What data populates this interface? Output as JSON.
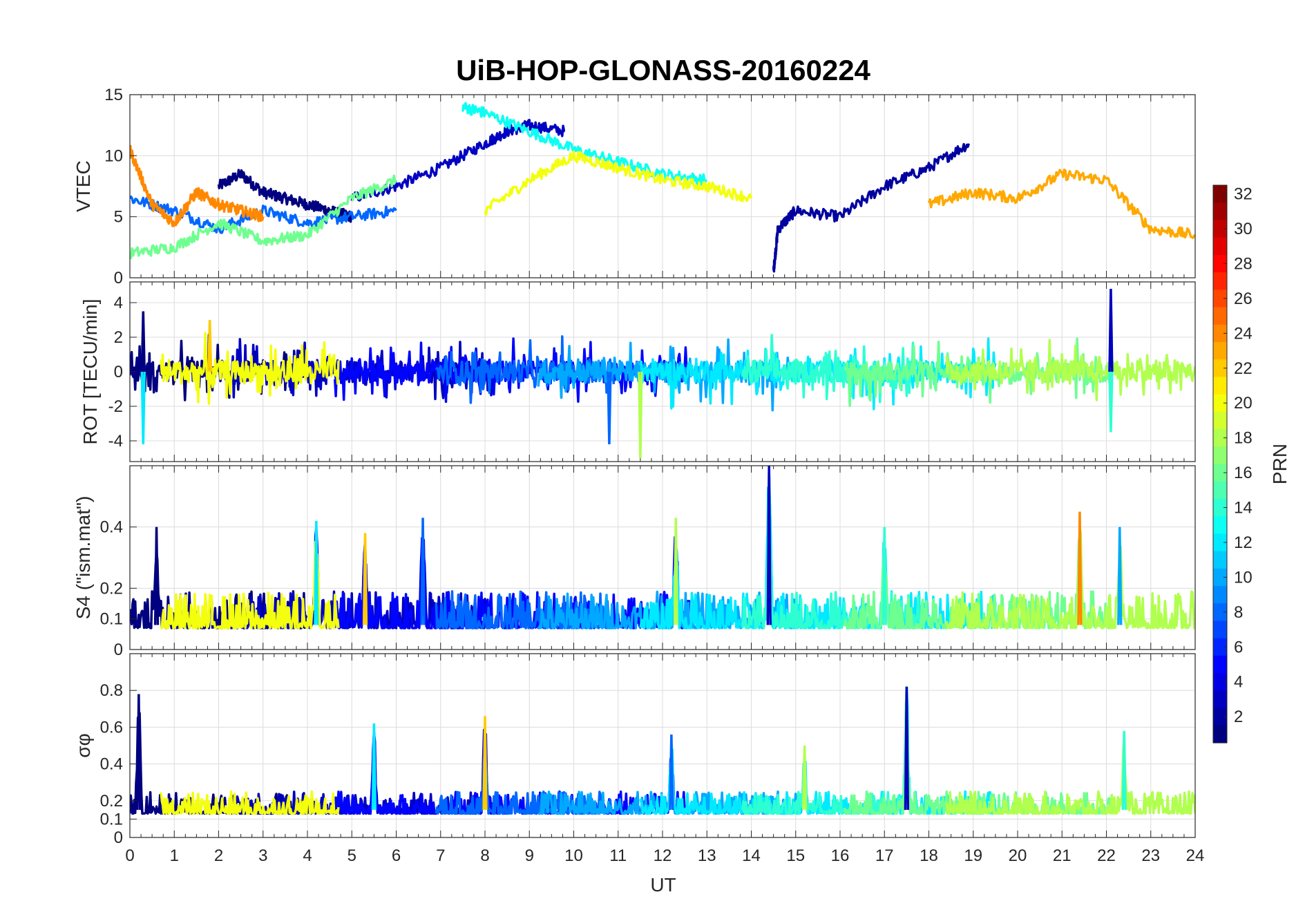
{
  "title": "UiB-HOP-GLONASS-20160224",
  "colorbar": {
    "label": "PRN",
    "ticks": [
      2,
      4,
      6,
      8,
      10,
      12,
      14,
      16,
      18,
      20,
      22,
      24,
      26,
      28,
      30,
      32
    ],
    "range": [
      1,
      32
    ],
    "colormap": "jet"
  },
  "chart_data": [
    {
      "type": "line",
      "ylabel": "VTEC",
      "ylim": [
        0,
        15
      ],
      "yticks": [
        0,
        5,
        10,
        15
      ],
      "xlim": [
        0,
        24
      ],
      "grid": true,
      "series_note": "Multiple PRN traces colored by PRN (jet colormap)",
      "series": [
        {
          "prn": 1,
          "x": [
            2.0,
            2.5,
            3.0,
            3.5,
            4.0,
            4.5,
            5.0
          ],
          "values": [
            7.5,
            8.5,
            7.0,
            6.5,
            6.0,
            5.5,
            5.0
          ]
        },
        {
          "prn": 3,
          "x": [
            5.0,
            6.0,
            7.0,
            8.0,
            8.5,
            9.0,
            9.8
          ],
          "values": [
            6.5,
            7.5,
            9.0,
            11.0,
            12.0,
            12.5,
            12.0
          ]
        },
        {
          "prn": 2,
          "x": [
            14.5,
            14.6,
            15.0,
            16.0,
            17.0,
            18.0,
            18.9
          ],
          "values": [
            0.5,
            4.0,
            5.5,
            5.0,
            7.5,
            9.0,
            11.0
          ]
        },
        {
          "prn": 8,
          "x": [
            0.0,
            1.0,
            2.0,
            3.0,
            4.0,
            5.0,
            6.0
          ],
          "values": [
            6.5,
            5.5,
            4.0,
            5.5,
            4.5,
            5.0,
            5.5
          ]
        },
        {
          "prn": 13,
          "x": [
            7.5,
            8.0,
            9.0,
            10.0,
            11.0,
            12.0,
            13.0
          ],
          "values": [
            14.0,
            13.5,
            12.0,
            10.5,
            9.5,
            8.5,
            8.0
          ]
        },
        {
          "prn": 16,
          "x": [
            0.0,
            1.0,
            2.0,
            3.0,
            4.0,
            5.0,
            6.0
          ],
          "values": [
            2.0,
            2.5,
            4.5,
            3.0,
            3.5,
            6.5,
            8.0
          ]
        },
        {
          "prn": 20,
          "x": [
            8.0,
            9.0,
            10.0,
            11.0,
            12.0,
            13.0,
            14.0
          ],
          "values": [
            5.5,
            8.0,
            10.0,
            9.0,
            8.0,
            7.5,
            6.5
          ]
        },
        {
          "prn": 23,
          "x": [
            18.0,
            19.0,
            20.0,
            21.0,
            22.0,
            23.0,
            24.0
          ],
          "values": [
            6.0,
            7.0,
            6.5,
            8.5,
            8.0,
            4.0,
            3.5
          ]
        },
        {
          "prn": 24,
          "x": [
            0.0,
            0.5,
            1.0,
            1.5,
            2.0,
            2.5,
            3.0
          ],
          "values": [
            10.5,
            6.0,
            4.5,
            7.0,
            6.0,
            5.5,
            5.0
          ]
        }
      ]
    },
    {
      "type": "line",
      "ylabel": "ROT [TECU/min]",
      "ylim": [
        -5.2,
        5.2
      ],
      "yticks": [
        -4,
        -2,
        0,
        2,
        4
      ],
      "xlim": [
        0,
        24
      ],
      "grid": true,
      "series_note": "Noisy traces around 0; largest spikes near 11.5 UT (about -5) and 22.1 UT (about +4.8)",
      "peaks": [
        {
          "x": 0.3,
          "y": 3.5
        },
        {
          "x": 0.3,
          "y": -4.2
        },
        {
          "x": 1.8,
          "y": 3.0
        },
        {
          "x": 10.8,
          "y": -4.2
        },
        {
          "x": 11.5,
          "y": -5.0
        },
        {
          "x": 22.1,
          "y": 4.8
        },
        {
          "x": 22.1,
          "y": -3.5
        }
      ]
    },
    {
      "type": "line",
      "ylabel": "S4 (\"ism.mat\")",
      "ylim": [
        0,
        0.6
      ],
      "yticks": [
        0,
        0.1,
        0.2,
        0.4
      ],
      "ytick_labels": [
        "0",
        "0.1",
        "0.2",
        "0.4"
      ],
      "xlim": [
        0,
        24
      ],
      "grid": true,
      "series_note": "Baseline about 0.05-0.1 with bursts; max about 0.6 near 14.4 UT",
      "peaks": [
        {
          "x": 0.6,
          "y": 0.4
        },
        {
          "x": 4.2,
          "y": 0.42
        },
        {
          "x": 5.3,
          "y": 0.38
        },
        {
          "x": 6.6,
          "y": 0.43
        },
        {
          "x": 12.3,
          "y": 0.43
        },
        {
          "x": 14.4,
          "y": 0.6
        },
        {
          "x": 17.0,
          "y": 0.4
        },
        {
          "x": 21.4,
          "y": 0.45
        },
        {
          "x": 22.3,
          "y": 0.4
        }
      ]
    },
    {
      "type": "line",
      "ylabel": "σφ",
      "ylim": [
        0,
        1
      ],
      "yticks": [
        0,
        0.1,
        0.2,
        0.4,
        0.6,
        0.8
      ],
      "ytick_labels": [
        "0",
        "0.1",
        "0.2",
        "0.4",
        "0.6",
        "0.8"
      ],
      "xlabel": "UT",
      "xlim": [
        0,
        24
      ],
      "xticks": [
        0,
        1,
        2,
        3,
        4,
        5,
        6,
        7,
        8,
        9,
        10,
        11,
        12,
        13,
        14,
        15,
        16,
        17,
        18,
        19,
        20,
        21,
        22,
        23,
        24
      ],
      "grid": true,
      "series_note": "Baseline about 0.1-0.2 with peaks",
      "peaks": [
        {
          "x": 0.2,
          "y": 0.78
        },
        {
          "x": 5.5,
          "y": 0.62
        },
        {
          "x": 8.0,
          "y": 0.66
        },
        {
          "x": 12.2,
          "y": 0.56
        },
        {
          "x": 15.2,
          "y": 0.5
        },
        {
          "x": 17.5,
          "y": 0.82
        },
        {
          "x": 22.4,
          "y": 0.58
        }
      ]
    }
  ]
}
